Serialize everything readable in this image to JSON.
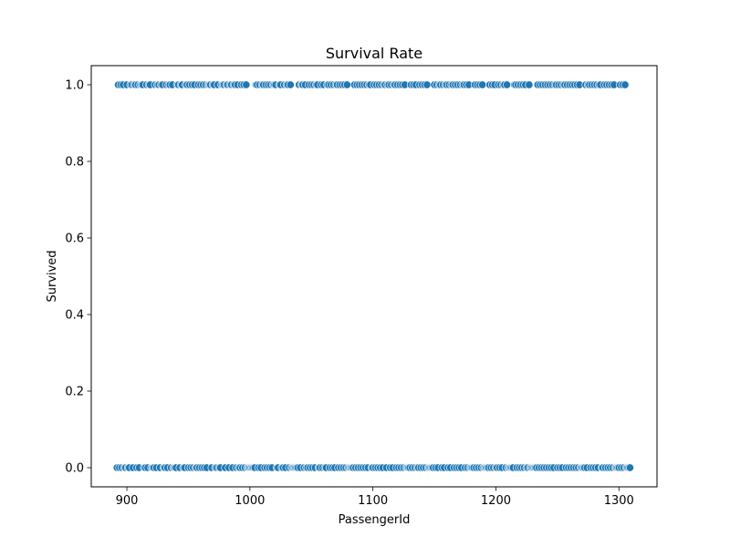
{
  "chart_data": {
    "type": "scatter",
    "title": "Survival Rate",
    "xlabel": "PassengerId",
    "ylabel": "Survived",
    "xlim": [
      871.05,
      1330.95
    ],
    "ylim": [
      -0.05,
      1.05
    ],
    "xticks": [
      {
        "value": 900,
        "label": "900"
      },
      {
        "value": 1000,
        "label": "1000"
      },
      {
        "value": 1100,
        "label": "1100"
      },
      {
        "value": 1200,
        "label": "1200"
      },
      {
        "value": 1300,
        "label": "1300"
      }
    ],
    "yticks": [
      {
        "value": 0.0,
        "label": "0.0"
      },
      {
        "value": 0.2,
        "label": "0.2"
      },
      {
        "value": 0.4,
        "label": "0.4"
      },
      {
        "value": 0.6,
        "label": "0.6"
      },
      {
        "value": 0.8,
        "label": "0.8"
      },
      {
        "value": 1.0,
        "label": "1.0"
      }
    ],
    "grid": false,
    "marker_color": "#1f77b4",
    "marker_edge": "#ffffff",
    "series": [
      {
        "y": 1,
        "x": [
          893,
          895,
          897,
          900,
          903,
          904,
          906,
          907,
          909,
          911,
          912,
          913,
          916,
          918,
          919,
          923,
          925,
          926,
          928,
          929,
          932,
          934,
          935,
          937,
          941,
          942,
          944,
          945,
          948,
          949,
          951,
          953,
          955,
          958,
          960,
          962,
          964,
          966,
          967,
          968,
          970,
          971,
          974,
          977,
          978,
          979,
          981,
          982,
          984,
          985,
          987,
          988,
          990,
          993,
          995,
          997,
          1005,
          1006,
          1008,
          1010,
          1011,
          1013,
          1015,
          1017,
          1019,
          1020,
          1021,
          1024,
          1025,
          1028,
          1030,
          1031,
          1033,
          1040,
          1042,
          1043,
          1045,
          1048,
          1050,
          1052,
          1054,
          1055,
          1058,
          1060,
          1063,
          1064,
          1066,
          1068,
          1070,
          1071,
          1073,
          1075,
          1077,
          1079,
          1085,
          1087,
          1089,
          1091,
          1093,
          1095,
          1097,
          1098,
          1101,
          1103,
          1105,
          1107,
          1109,
          1110,
          1112,
          1113,
          1115,
          1117,
          1118,
          1120,
          1122,
          1124,
          1126,
          1131,
          1133,
          1135,
          1138,
          1140,
          1142,
          1144,
          1150,
          1152,
          1154,
          1155,
          1157,
          1159,
          1160,
          1162,
          1164,
          1165,
          1167,
          1169,
          1171,
          1173,
          1174,
          1176,
          1178,
          1183,
          1185,
          1187,
          1189,
          1195,
          1197,
          1199,
          1202,
          1204,
          1206,
          1207,
          1209,
          1215,
          1216,
          1218,
          1220,
          1222,
          1224,
          1227,
          1234,
          1236,
          1238,
          1240,
          1242,
          1244,
          1246,
          1248,
          1249,
          1251,
          1253,
          1255,
          1256,
          1258,
          1260,
          1262,
          1264,
          1266,
          1268,
          1273,
          1275,
          1276,
          1278,
          1280,
          1282,
          1284,
          1285,
          1288,
          1290,
          1292,
          1294,
          1296,
          1301,
          1303,
          1305
        ]
      },
      {
        "y": 0,
        "x": [
          892,
          894,
          896,
          898,
          899,
          901,
          902,
          905,
          908,
          910,
          914,
          915,
          917,
          920,
          921,
          922,
          924,
          927,
          930,
          931,
          933,
          936,
          938,
          939,
          940,
          943,
          946,
          947,
          950,
          952,
          954,
          956,
          957,
          959,
          961,
          963,
          965,
          969,
          972,
          973,
          975,
          976,
          980,
          983,
          986,
          989,
          991,
          992,
          994,
          996,
          998,
          999,
          1000,
          1001,
          1002,
          1003,
          1004,
          1007,
          1009,
          1012,
          1014,
          1016,
          1018,
          1022,
          1023,
          1026,
          1027,
          1029,
          1032,
          1034,
          1035,
          1036,
          1037,
          1038,
          1039,
          1041,
          1044,
          1046,
          1047,
          1049,
          1051,
          1053,
          1056,
          1057,
          1059,
          1061,
          1062,
          1065,
          1067,
          1069,
          1072,
          1074,
          1076,
          1078,
          1080,
          1081,
          1082,
          1083,
          1084,
          1086,
          1088,
          1090,
          1092,
          1094,
          1096,
          1099,
          1100,
          1102,
          1104,
          1106,
          1108,
          1111,
          1114,
          1116,
          1119,
          1121,
          1123,
          1125,
          1127,
          1128,
          1129,
          1130,
          1132,
          1134,
          1136,
          1137,
          1139,
          1141,
          1143,
          1145,
          1146,
          1147,
          1148,
          1149,
          1151,
          1153,
          1156,
          1158,
          1161,
          1163,
          1166,
          1168,
          1170,
          1172,
          1175,
          1177,
          1179,
          1180,
          1181,
          1182,
          1184,
          1186,
          1188,
          1190,
          1191,
          1192,
          1193,
          1194,
          1196,
          1198,
          1200,
          1201,
          1203,
          1205,
          1208,
          1210,
          1211,
          1212,
          1213,
          1214,
          1217,
          1219,
          1221,
          1223,
          1225,
          1226,
          1228,
          1229,
          1230,
          1231,
          1232,
          1233,
          1235,
          1237,
          1239,
          1241,
          1243,
          1245,
          1247,
          1250,
          1252,
          1254,
          1257,
          1259,
          1261,
          1263,
          1265,
          1267,
          1269,
          1270,
          1271,
          1272,
          1274,
          1277,
          1279,
          1281,
          1283,
          1286,
          1287,
          1289,
          1291,
          1293,
          1295,
          1297,
          1298,
          1299,
          1300,
          1302,
          1304,
          1306,
          1307,
          1308,
          1309
        ]
      }
    ]
  }
}
